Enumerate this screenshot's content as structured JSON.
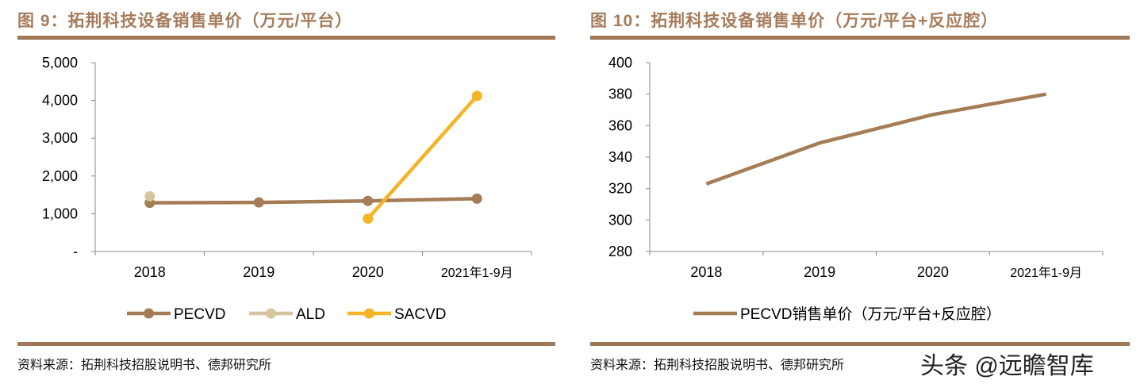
{
  "chart_data": [
    {
      "type": "line",
      "title": "图 9：拓荆科技设备销售单价（万元/平台）",
      "categories": [
        "2018",
        "2019",
        "2020",
        "2021年1-9月"
      ],
      "ylim": [
        0,
        5000
      ],
      "yticks": [
        "-",
        "1,000",
        "2,000",
        "3,000",
        "4,000",
        "5,000"
      ],
      "legend_position": "bottom",
      "grid": false,
      "series": [
        {
          "name": "PECVD",
          "color": "#a47c56",
          "values": [
            1290,
            1300,
            1340,
            1400
          ]
        },
        {
          "name": "ALD",
          "color": "#d6c59f",
          "values": [
            1460,
            null,
            null,
            null
          ]
        },
        {
          "name": "SACVD",
          "color": "#f5b326",
          "values": [
            null,
            null,
            870,
            4120
          ]
        }
      ],
      "source": "资料来源：拓荆科技招股说明书、德邦研究所"
    },
    {
      "type": "line",
      "title": "图 10：拓荆科技设备销售单价（万元/平台+反应腔）",
      "categories": [
        "2018",
        "2019",
        "2020",
        "2021年1-9月"
      ],
      "ylim": [
        280,
        400
      ],
      "yticks": [
        "280",
        "300",
        "320",
        "340",
        "360",
        "380",
        "400"
      ],
      "legend_position": "bottom",
      "grid": false,
      "series": [
        {
          "name": "PECVD销售单价（万元/平台+反应腔）",
          "color": "#a47c56",
          "values": [
            323,
            349,
            367,
            380
          ]
        }
      ],
      "source": "资料来源：拓荆科技招股说明书、德邦研究所"
    }
  ],
  "watermark": "头条 @远瞻智库"
}
